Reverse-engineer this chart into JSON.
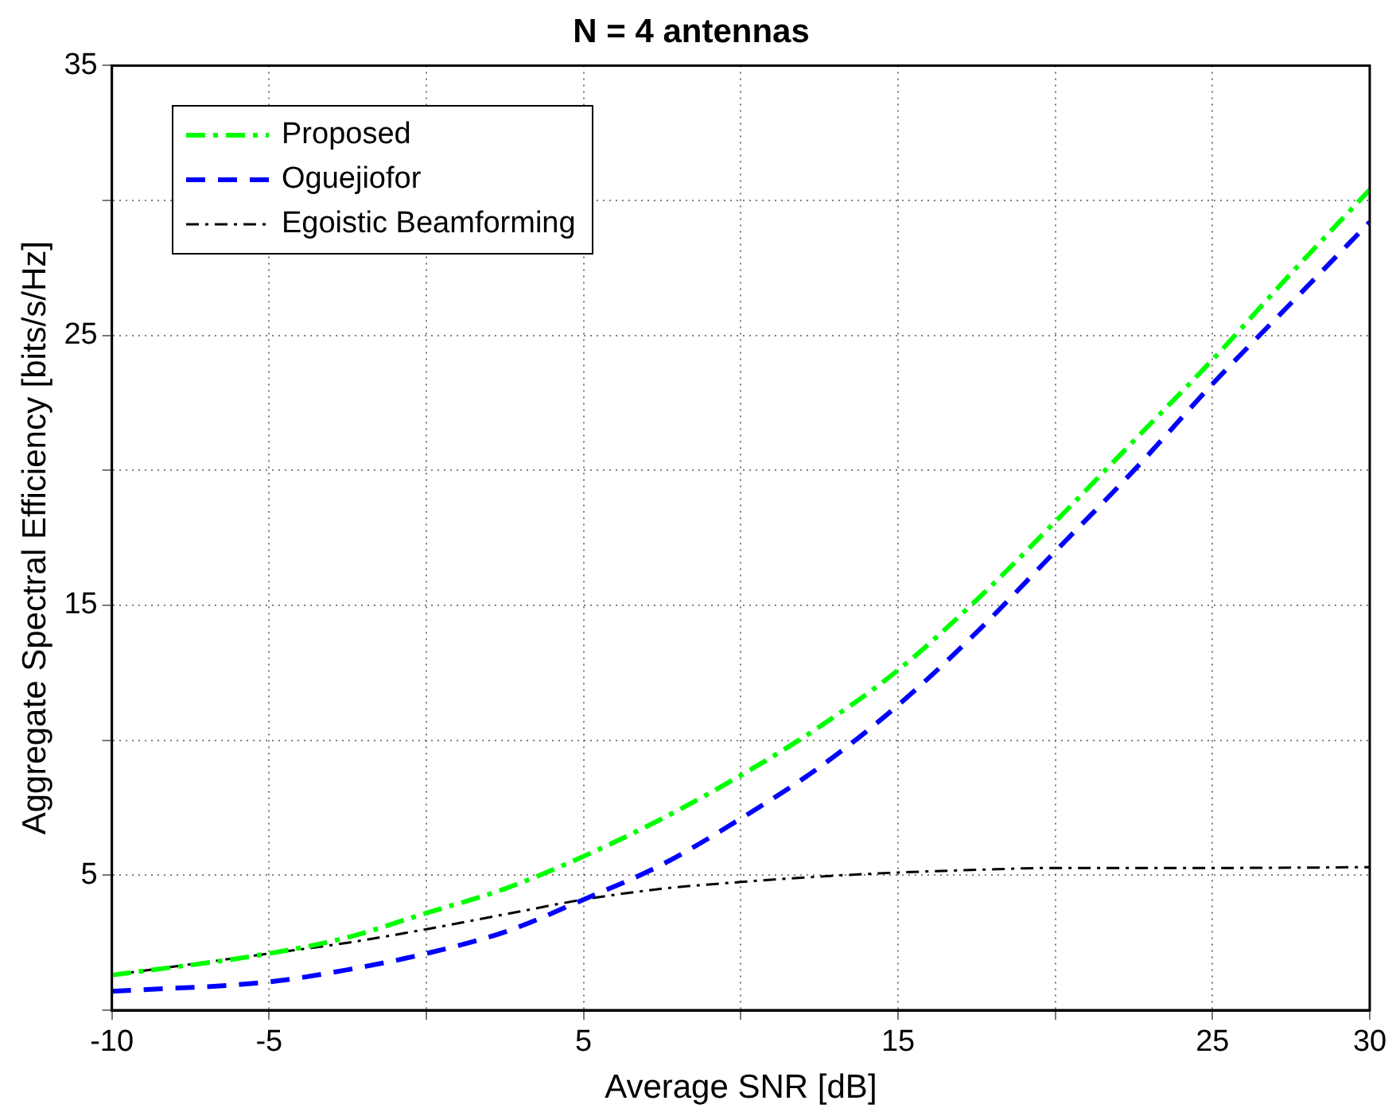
{
  "chart_data": {
    "type": "line",
    "title": "N = 4 antennas",
    "xlabel": "Average SNR [dB]",
    "ylabel": "Aggregate Spectral Efficiency [bits/s/Hz]",
    "x": [
      -10,
      -5,
      -2.5,
      0,
      2.5,
      5,
      7.5,
      10,
      12.5,
      15,
      17.5,
      20,
      22.5,
      25,
      27.5,
      30
    ],
    "xlim": [
      -10,
      30
    ],
    "xticks": [
      -10,
      -5,
      {
        "value": 0,
        "label": null
      },
      5,
      {
        "value": 10,
        "label": null
      },
      15,
      {
        "value": 20,
        "label": null
      },
      25,
      30
    ],
    "ylim": [
      0,
      35
    ],
    "yticks": [
      {
        "value": 0,
        "label": null
      },
      5,
      {
        "value": 10,
        "label": null
      },
      15,
      {
        "value": 20,
        "label": null
      },
      25,
      {
        "value": 30,
        "label": null
      },
      35
    ],
    "grid": true,
    "legend": "top left",
    "marker": "none",
    "series": [
      {
        "name": "Proposed",
        "color": "#00ff00",
        "line_style": "dashdot",
        "values": [
          1.3,
          2.1,
          2.7,
          3.6,
          4.5,
          5.7,
          7.1,
          8.7,
          10.5,
          12.6,
          15.2,
          18.1,
          21.1,
          24.1,
          27.3,
          30.4
        ]
      },
      {
        "name": "Oguejiofor",
        "color": "#0000ff",
        "line_style": "dashed",
        "values": [
          0.7,
          1.05,
          1.5,
          2.1,
          2.9,
          4.1,
          5.4,
          7.1,
          9.0,
          11.3,
          14.0,
          17.0,
          20.0,
          23.2,
          26.2,
          29.2
        ]
      },
      {
        "name": "Egoistic Beamforming",
        "color": "#000000",
        "line_style": "dashdot",
        "values": [
          1.3,
          2.1,
          2.5,
          3.0,
          3.55,
          4.1,
          4.5,
          4.75,
          4.95,
          5.1,
          5.2,
          5.27,
          5.27,
          5.27,
          5.28,
          5.3
        ]
      }
    ]
  }
}
